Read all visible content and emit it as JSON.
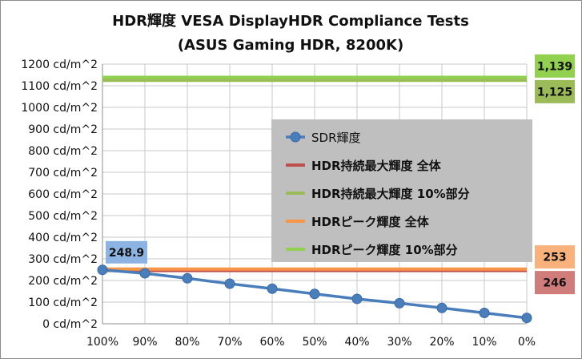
{
  "chart_data": {
    "type": "line",
    "title": [
      "HDR輝度 VESA DisplayHDR Compliance Tests",
      "(ASUS Gaming HDR, 8200K)"
    ],
    "categories": [
      "100%",
      "90%",
      "80%",
      "70%",
      "60%",
      "50%",
      "40%",
      "30%",
      "20%",
      "10%",
      "0%"
    ],
    "ylim": [
      0,
      1200
    ],
    "yticks": [
      "0 cd/m^2",
      "100 cd/m^2",
      "200 cd/m^2",
      "300 cd/m^2",
      "400 cd/m^2",
      "500 cd/m^2",
      "600 cd/m^2",
      "700 cd/m^2",
      "800 cd/m^2",
      "900 cd/m^2",
      "1000 cd/m^2",
      "1100 cd/m^2",
      "1200 cd/m^2"
    ],
    "ytick_values": [
      0,
      100,
      200,
      300,
      400,
      500,
      600,
      700,
      800,
      900,
      1000,
      1100,
      1200
    ],
    "series": [
      {
        "name": "SDR輝度",
        "kind": "markers",
        "color": "#4a7ebb",
        "values": [
          248.9,
          233,
          210,
          185,
          162,
          138,
          115,
          95,
          73,
          50,
          27
        ],
        "first_label": "248.9",
        "label_bg": "#8db3e2"
      },
      {
        "name": "HDR持続最大輝度 全体",
        "kind": "flat",
        "color": "#c0504d",
        "value": 246,
        "label": "246",
        "label_bg": "#d07c7a",
        "label_side": "right"
      },
      {
        "name": "HDR持続最大輝度 10%部分",
        "kind": "flat",
        "color": "#9bbb59",
        "value": 1125,
        "label": "1,125",
        "label_bg": "#9bbb59",
        "label_side": "right"
      },
      {
        "name": "HDRピーク輝度 全体",
        "kind": "flat",
        "color": "#f79646",
        "value": 253,
        "label": "253",
        "label_bg": "#f9b27b",
        "label_side": "right"
      },
      {
        "name": "HDRピーク輝度 10%部分",
        "kind": "flat",
        "color": "#92d050",
        "value": 1139,
        "label": "1,139",
        "label_bg": "#92d050",
        "label_side": "right"
      }
    ],
    "legend": {
      "placement": "center-right",
      "background": "#bfbfbf",
      "entries": [
        "SDR輝度",
        "HDR持続最大輝度 全体",
        "HDR持続最大輝度 10%部分",
        "HDRピーク輝度 全体",
        "HDRピーク輝度 10%部分"
      ]
    },
    "grid": true
  }
}
